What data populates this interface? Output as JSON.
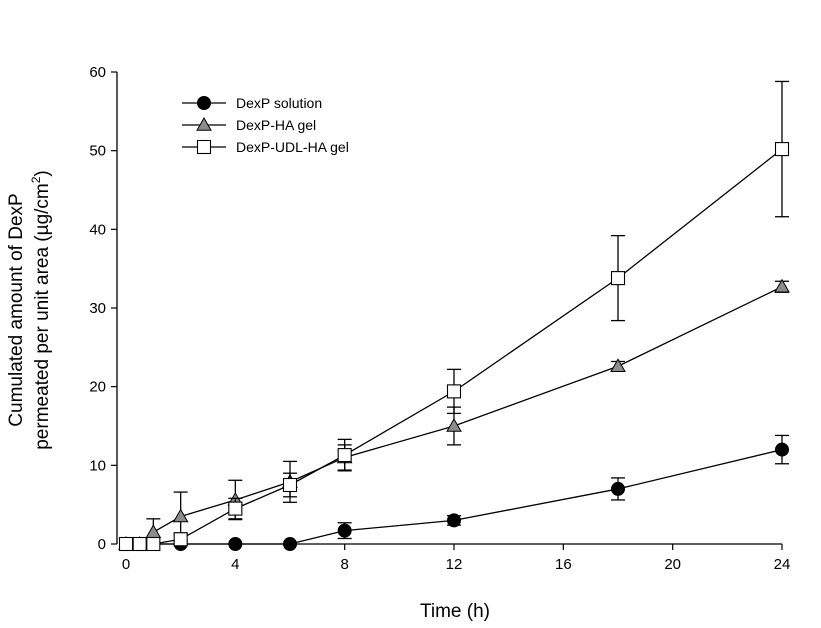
{
  "chart_data": {
    "type": "line",
    "title": "",
    "xlabel": "Time (h)",
    "ylabel_line1": "Cumulated amount of DexP",
    "ylabel_line2_prefix": "permeated per unit area (µg/cm",
    "ylabel_line2_sup": "2",
    "ylabel_line2_suffix": ")",
    "xlim": [
      0,
      24
    ],
    "ylim": [
      0,
      60
    ],
    "x_ticks": [
      0,
      4,
      8,
      12,
      16,
      20,
      24
    ],
    "y_ticks": [
      0,
      10,
      20,
      30,
      40,
      50,
      60
    ],
    "x_tick_labels": [
      "0",
      "4",
      "8",
      "12",
      "16",
      "20",
      "24"
    ],
    "y_tick_labels": [
      "0",
      "10",
      "20",
      "30",
      "40",
      "50",
      "60"
    ],
    "grid": false,
    "legend_position": "top-left",
    "series": [
      {
        "name": "DexP solution",
        "marker": "circle",
        "marker_fill": "#000000",
        "x": [
          0,
          0.5,
          1,
          2,
          4,
          6,
          8,
          12,
          18,
          24
        ],
        "y": [
          0,
          0,
          0,
          0,
          0,
          0,
          1.7,
          3.0,
          7.0,
          12.0
        ],
        "err": [
          0,
          0,
          0,
          0,
          0,
          0,
          1.0,
          0.6,
          1.4,
          1.8
        ]
      },
      {
        "name": "DexP-HA gel",
        "marker": "triangle",
        "marker_fill": "#8c8c8c",
        "x": [
          0,
          0.5,
          1,
          2,
          4,
          6,
          8,
          12,
          18,
          24
        ],
        "y": [
          0,
          0,
          1.5,
          3.5,
          5.6,
          7.9,
          11.0,
          15.0,
          22.6,
          32.7
        ],
        "err": [
          0,
          0,
          1.7,
          3.1,
          2.5,
          2.6,
          1.6,
          2.4,
          0.6,
          0.7
        ]
      },
      {
        "name": "DexP-UDL-HA gel",
        "marker": "square",
        "marker_fill": "#ffffff",
        "x": [
          0,
          0.5,
          1,
          2,
          4,
          6,
          8,
          12,
          18,
          24
        ],
        "y": [
          0,
          0,
          0,
          0.6,
          4.5,
          7.5,
          11.3,
          19.4,
          33.8,
          50.2
        ],
        "err": [
          0,
          0,
          0,
          0.8,
          1.3,
          1.5,
          2.0,
          2.8,
          5.4,
          8.6
        ]
      }
    ]
  }
}
